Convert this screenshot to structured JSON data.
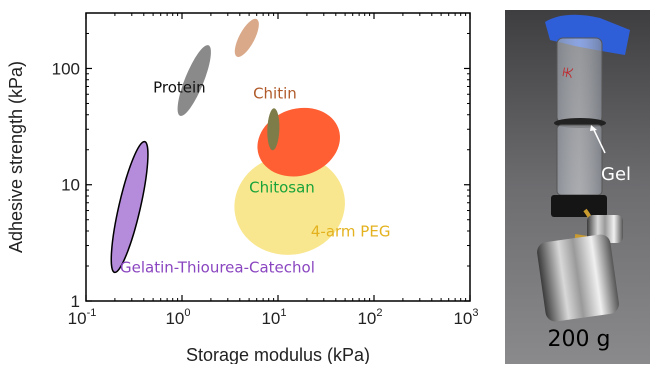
{
  "chart_data": {
    "type": "scatter",
    "xlabel": "Storage modulus (kPa)",
    "ylabel": "Adhesive strength (kPa)",
    "xscale": "log",
    "yscale": "log",
    "xlim": [
      0.1,
      1000
    ],
    "ylim": [
      1,
      300
    ],
    "x_ticks": [
      {
        "value": 0.1,
        "base": "10",
        "exp": "-1"
      },
      {
        "value": 1,
        "base": "10",
        "exp": "0"
      },
      {
        "value": 10,
        "base": "10",
        "exp": "1"
      },
      {
        "value": 100,
        "base": "10",
        "exp": "2"
      },
      {
        "value": 1000,
        "base": "10",
        "exp": "3"
      }
    ],
    "y_ticks": [
      {
        "value": 1,
        "label": "1"
      },
      {
        "value": 10,
        "label": "10"
      },
      {
        "value": 100,
        "label": "100"
      }
    ],
    "grid": false,
    "regions": [
      {
        "name": "4-arm PEG",
        "label": "4-arm PEG",
        "color": "#f9e78f",
        "x_range": [
          3.5,
          50
        ],
        "y_range": [
          2.5,
          18
        ]
      },
      {
        "name": "Chitosan region",
        "label": "",
        "color": "#ff5f33",
        "x_range": [
          6,
          45
        ],
        "y_range": [
          12,
          45
        ]
      },
      {
        "name": "Chitosan",
        "label": "Chitosan",
        "color": "#7e7c48",
        "x_range": [
          8,
          10
        ],
        "y_range": [
          20,
          45
        ]
      },
      {
        "name": "Protein",
        "label": "Protein",
        "color": "#8a8a8a",
        "x_range": [
          0.9,
          2.0
        ],
        "y_range": [
          40,
          155
        ]
      },
      {
        "name": "Chitin",
        "label": "Chitin",
        "color": "#d9a989",
        "x_range": [
          3.2,
          7.0
        ],
        "y_range": [
          140,
          240
        ]
      },
      {
        "name": "Gelatin-Thiourea-Catechol",
        "label": "Gelatin-Thiourea-Catechol",
        "color": "#b58bdc",
        "x_range": [
          0.18,
          0.45
        ],
        "y_range": [
          1.8,
          23
        ]
      }
    ],
    "label_colors": {
      "Protein": "#111111",
      "Chitin": "#b05a2a",
      "Chitosan": "#1aa33a",
      "4-arm PEG": "#e3b21e",
      "Gelatin-Thiourea-Catechol": "#8a45c0"
    }
  },
  "photo": {
    "gel_label": "Gel",
    "weight_label": "200 g",
    "vial_text": "天"
  }
}
